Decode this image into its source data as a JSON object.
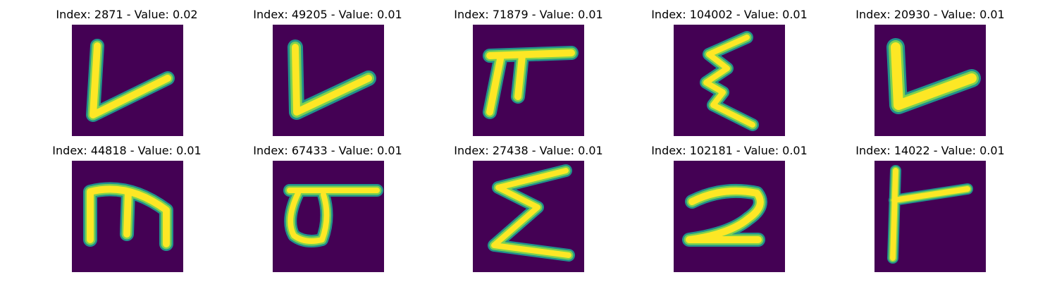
{
  "colors": {
    "background": "#ffffff",
    "image_background": "#440154",
    "stroke_edge": "#21918c",
    "stroke_mid": "#7ad151",
    "stroke_core": "#fde725"
  },
  "panels": [
    {
      "title": "Index: 2871 - Value: 0.02",
      "glyph": "handwritten-v"
    },
    {
      "title": "Index: 49205 - Value: 0.01",
      "glyph": "handwritten-v"
    },
    {
      "title": "Index: 71879 - Value: 0.01",
      "glyph": "handwritten-pi"
    },
    {
      "title": "Index: 104002 - Value: 0.01",
      "glyph": "handwritten-xi"
    },
    {
      "title": "Index: 20930 - Value: 0.01",
      "glyph": "handwritten-v"
    },
    {
      "title": "Index: 44818 - Value: 0.01",
      "glyph": "handwritten-m"
    },
    {
      "title": "Index: 67433 - Value: 0.01",
      "glyph": "handwritten-sigma"
    },
    {
      "title": "Index: 27438 - Value: 0.01",
      "glyph": "handwritten-sigma-upper"
    },
    {
      "title": "Index: 102181 - Value: 0.01",
      "glyph": "handwritten-2"
    },
    {
      "title": "Index: 14022 - Value: 0.01",
      "glyph": "handwritten-gamma"
    }
  ]
}
